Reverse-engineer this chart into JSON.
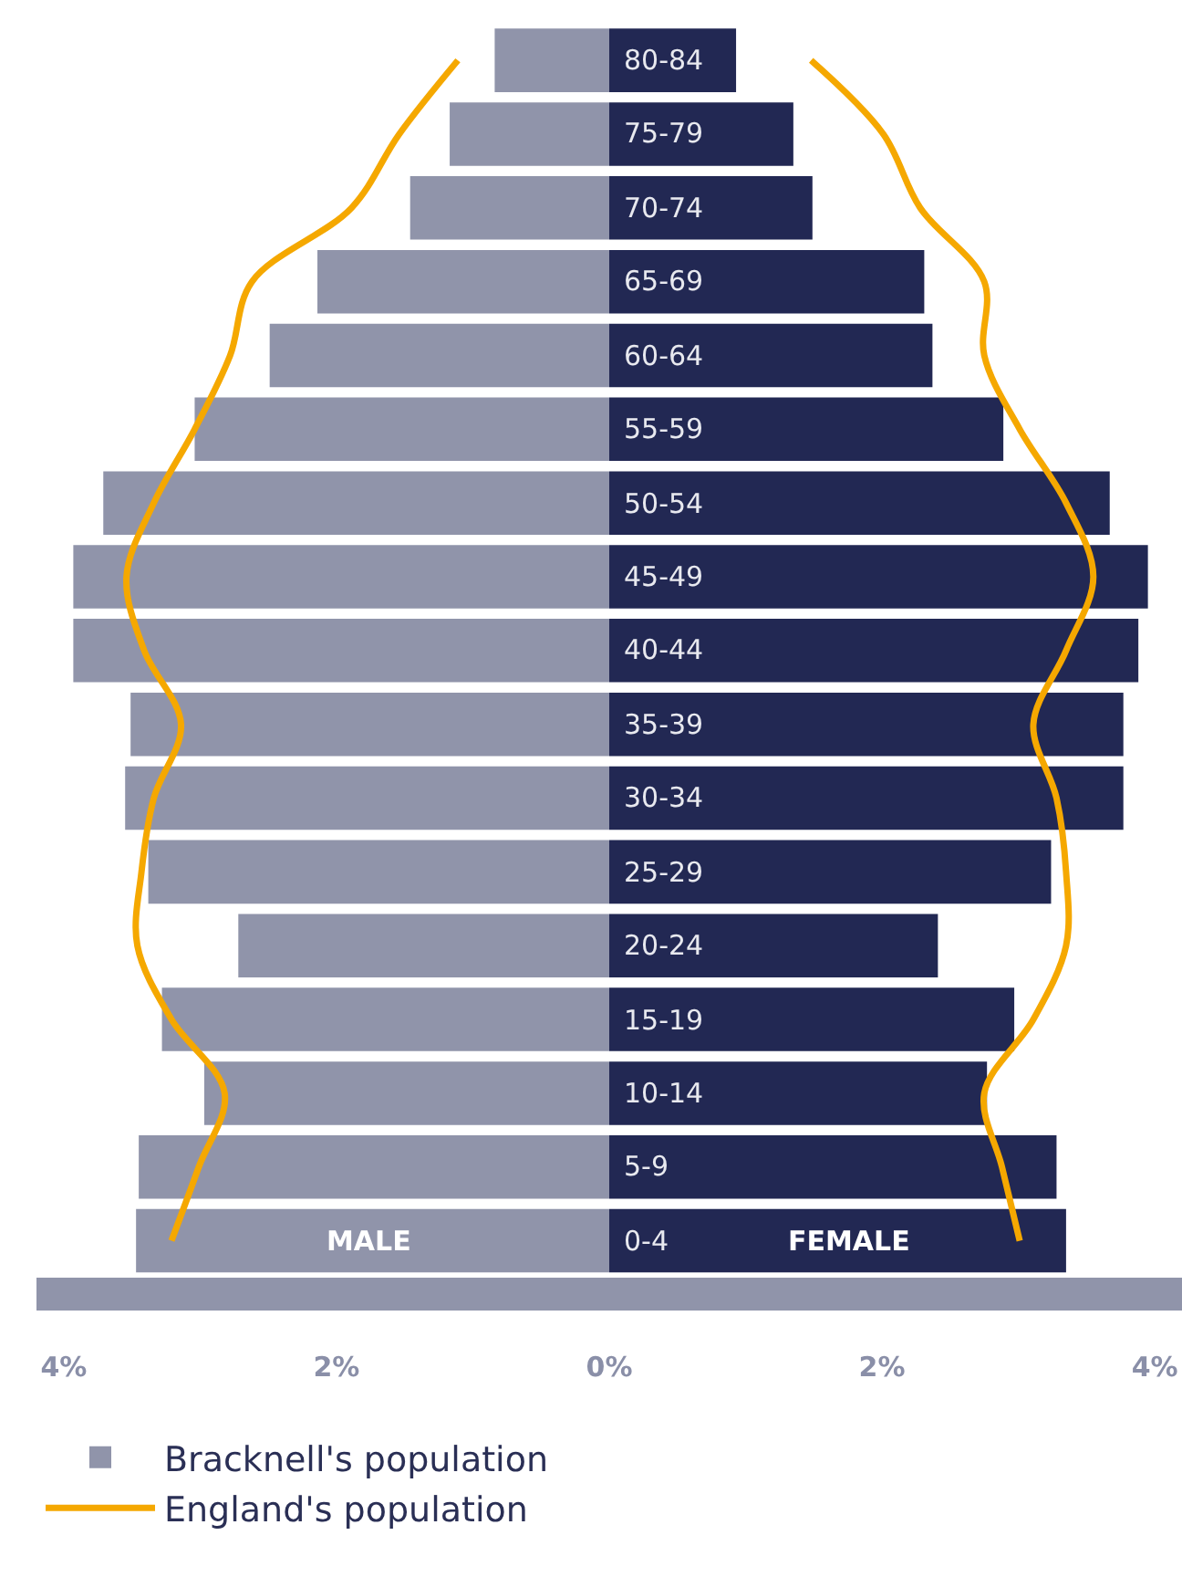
{
  "chart_data": {
    "type": "bar",
    "orientation": "horizontal",
    "stacked": true,
    "categories": [
      "80-84",
      "75-79",
      "70-74",
      "65-69",
      "60-64",
      "55-59",
      "50-54",
      "45-49",
      "40-44",
      "35-39",
      "30-34",
      "25-29",
      "20-24",
      "15-19",
      "10-14",
      "5-9",
      "0-4"
    ],
    "series": [
      {
        "name": "Bracknell's population",
        "color": "#9094aa",
        "values": [
          -0.84,
          -1.17,
          -1.46,
          -2.14,
          -2.49,
          -3.04,
          -3.71,
          -3.93,
          -3.93,
          -3.51,
          -3.55,
          -3.38,
          -2.72,
          -3.28,
          -2.97,
          -3.45,
          -3.47
        ]
      },
      {
        "color": "#222853",
        "values": [
          0.93,
          1.35,
          1.49,
          2.31,
          2.37,
          2.89,
          3.67,
          3.95,
          3.88,
          3.77,
          3.77,
          3.24,
          2.41,
          2.97,
          2.77,
          3.28,
          3.35
        ]
      },
      {
        "name": "England's population",
        "type": "line",
        "color": "#f5a800",
        "values": [
          -1.11,
          -1.54,
          -1.89,
          -2.62,
          -2.78,
          -3.04,
          -3.34,
          -3.54,
          -3.41,
          -3.14,
          -3.34,
          -3.43,
          -3.46,
          -3.21,
          -2.82,
          -3.01,
          -3.21
        ]
      },
      {
        "type": "line",
        "color": "#f5a800",
        "values": [
          1.48,
          2.01,
          2.28,
          2.75,
          2.75,
          3.01,
          3.35,
          3.55,
          3.35,
          3.11,
          3.28,
          3.35,
          3.35,
          3.11,
          2.75,
          2.88,
          3.01
        ]
      }
    ],
    "xlim": [
      -4.2,
      4.2
    ],
    "xticks": [
      {
        "value": -4,
        "label": "4%"
      },
      {
        "value": -2,
        "label": "2%"
      },
      {
        "value": 0,
        "label": "0%"
      },
      {
        "value": 2,
        "label": "2%"
      },
      {
        "value": 4,
        "label": "4%"
      }
    ],
    "annotations": [
      "MALE",
      "FEMALE"
    ],
    "legend": "bottom left"
  }
}
